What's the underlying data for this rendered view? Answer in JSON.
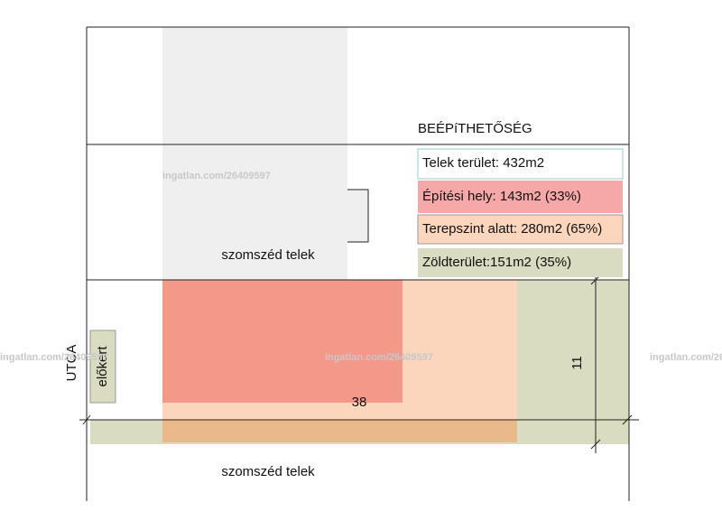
{
  "title": "BEÉPíTHETŐSÉG",
  "legend": [
    "Telek terület: 432m2",
    "Építési hely: 143m2 (33%)",
    "Terepszint alatt: 280m2 (65%)",
    "Zöldterület:151m2 (35%)"
  ],
  "labels": {
    "neighbor_top": "szomszéd telek",
    "neighbor_bottom": "szomszéd telek",
    "street": "UTCA",
    "front_yard": "előkert",
    "length": "38",
    "width": "11"
  },
  "watermark": "ingatlan.com/26409597"
}
